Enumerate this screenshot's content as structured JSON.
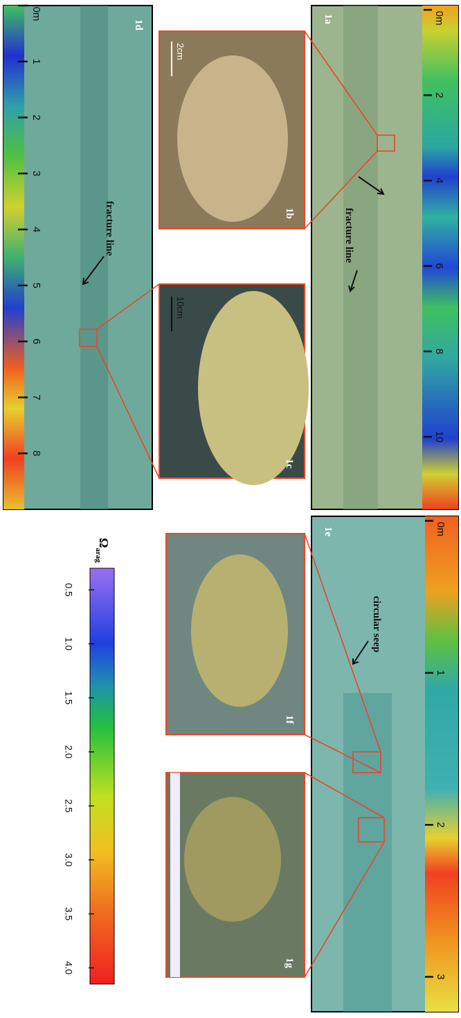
{
  "panels": [
    {
      "label": "1a",
      "annotation": "fracture line",
      "ruler": {
        "lim": [
          -0.1,
          11.7
        ],
        "ticks": [
          {
            "value": 0,
            "label": "0m"
          },
          2,
          4,
          6,
          8,
          10
        ]
      }
    },
    {
      "label": "1d",
      "annotation": "fracture line",
      "ruler": {
        "lim": [
          0,
          9
        ],
        "ticks": [
          {
            "value": 0,
            "label": "0m"
          },
          1,
          2,
          3,
          4,
          5,
          6,
          7,
          8
        ]
      }
    },
    {
      "label": "1e",
      "annotation": "circular seep",
      "ruler": {
        "lim": [
          -0.03,
          3.23
        ],
        "ticks": [
          {
            "value": 0,
            "label": "0m"
          },
          1,
          2,
          3
        ]
      }
    }
  ],
  "insets": [
    {
      "label": "1b",
      "scale": "2cm"
    },
    {
      "label": "1c",
      "scale": "10cm"
    },
    {
      "label": "1f"
    },
    {
      "label": "1g"
    }
  ],
  "colorbar": {
    "title": "Ω",
    "subscript": "arag",
    "lim": [
      0.3,
      4.15
    ],
    "ticks": [
      0.5,
      {
        "value": 1,
        "label": "1.0"
      },
      1.5,
      {
        "value": 2,
        "label": "2.0"
      },
      2.5,
      {
        "value": 3,
        "label": "3.0"
      },
      3.5,
      {
        "value": 4,
        "label": "4.0"
      }
    ]
  }
}
